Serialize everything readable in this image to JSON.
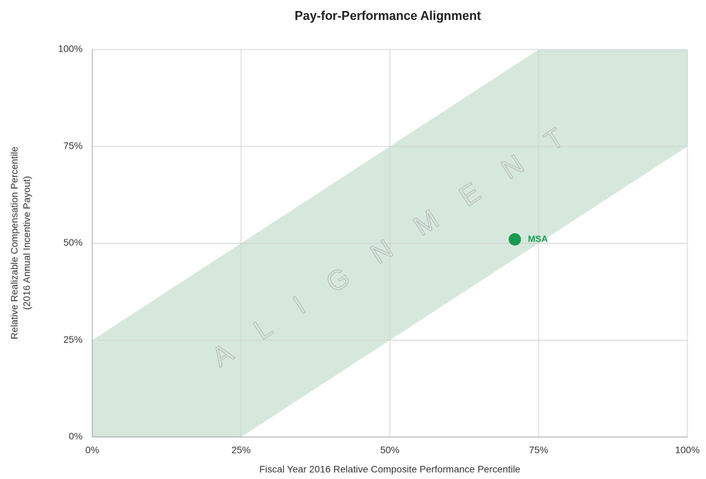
{
  "chart_data": {
    "type": "scatter",
    "title": "Pay-for-Performance Alignment",
    "xlabel": "Fiscal Year 2016 Relative Composite Performance Percentile",
    "ylabel": [
      "Relative Realizable Compensation Percentile",
      "(2016 Annual Incentive Payout)"
    ],
    "xlim": [
      0,
      100
    ],
    "ylim": [
      0,
      100
    ],
    "xticks": [
      {
        "value": 0,
        "label": "0%"
      },
      {
        "value": 25,
        "label": "25%"
      },
      {
        "value": 50,
        "label": "50%"
      },
      {
        "value": 75,
        "label": "75%"
      },
      {
        "value": 100,
        "label": "100%"
      }
    ],
    "yticks": [
      {
        "value": 0,
        "label": "0%"
      },
      {
        "value": 25,
        "label": "25%"
      },
      {
        "value": 50,
        "label": "50%"
      },
      {
        "value": 75,
        "label": "75%"
      },
      {
        "value": 100,
        "label": "100%"
      }
    ],
    "grid": true,
    "band": {
      "name": "ALIGNMENT",
      "color": "#d6e8dc",
      "x": [
        0,
        0,
        75,
        100,
        100,
        25
      ],
      "y": [
        0,
        25,
        100,
        100,
        75,
        0
      ]
    },
    "series": [
      {
        "name": "MSA",
        "color": "#1a9a50",
        "x": [
          71
        ],
        "y": [
          51
        ]
      }
    ]
  }
}
